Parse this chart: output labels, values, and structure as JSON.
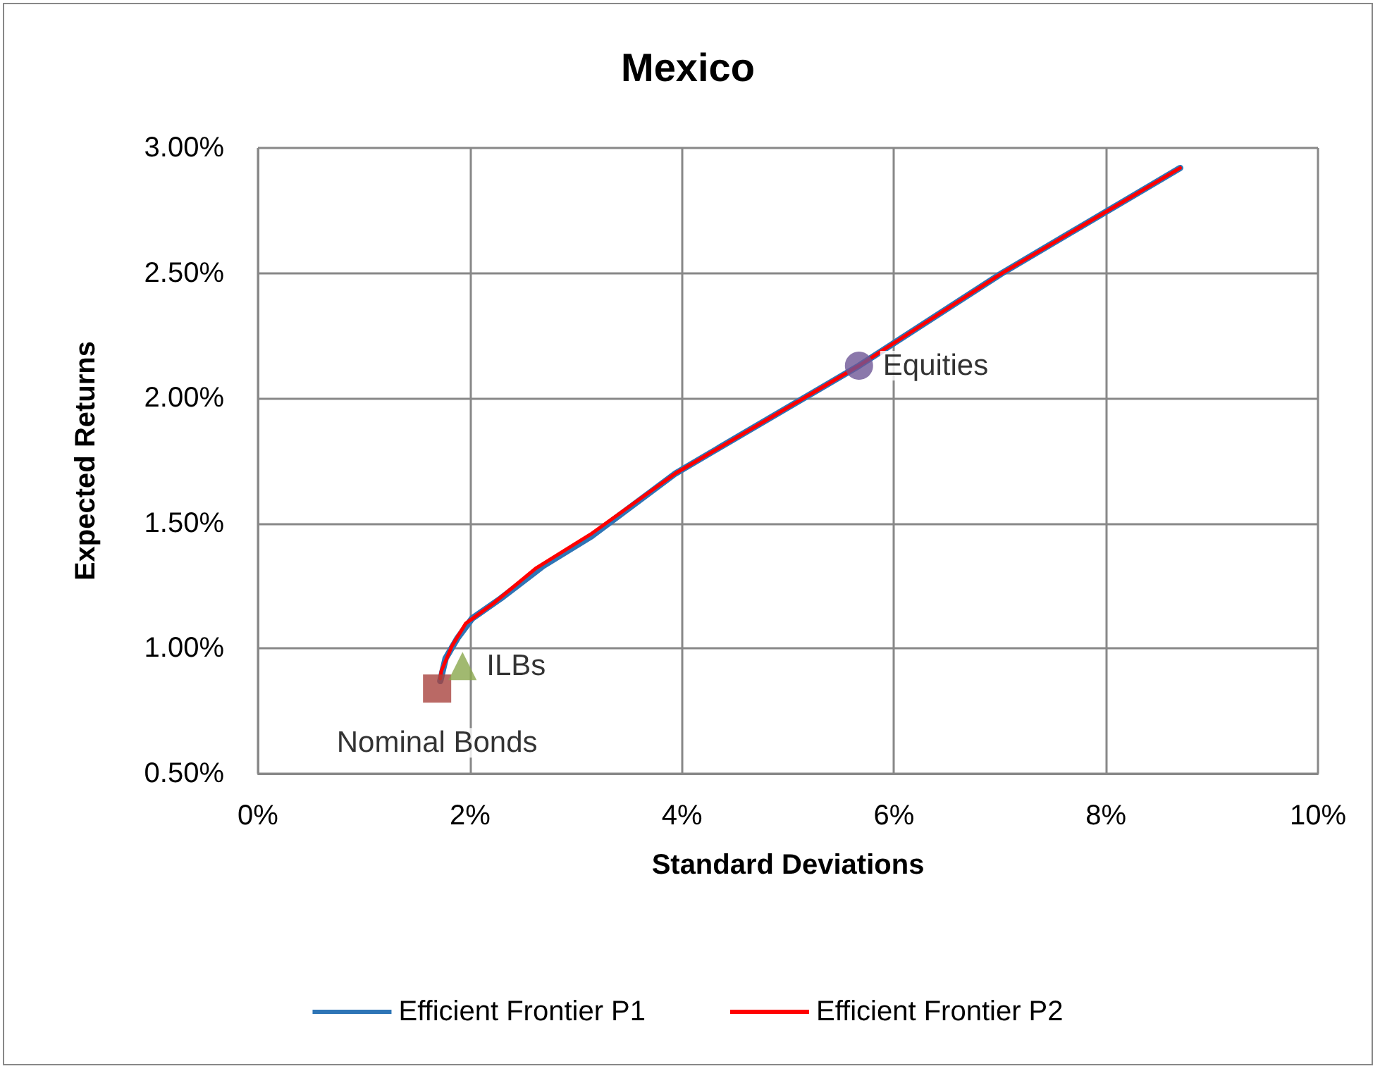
{
  "chart_data": {
    "type": "line",
    "title": "Mexico",
    "xlabel": "Standard Deviations",
    "ylabel": "Expected Returns",
    "xlim": [
      0,
      10
    ],
    "xticks": [
      {
        "value": 0,
        "label": "0%"
      },
      {
        "value": 2,
        "label": "2%"
      },
      {
        "value": 4,
        "label": "4%"
      },
      {
        "value": 6,
        "label": "6%"
      },
      {
        "value": 8,
        "label": "8%"
      },
      {
        "value": 10,
        "label": "10%"
      }
    ],
    "ylim": [
      0.5,
      3.0
    ],
    "yticks": [
      {
        "value": 0.5,
        "label": "0.50%"
      },
      {
        "value": 1.0,
        "label": "1.00%"
      },
      {
        "value": 1.5,
        "label": "1.50%"
      },
      {
        "value": 2.0,
        "label": "2.00%"
      },
      {
        "value": 2.5,
        "label": "2.50%"
      },
      {
        "value": 3.0,
        "label": "3.00%"
      }
    ],
    "grid": true,
    "legend": "bottom",
    "line_style": "solid",
    "series": [
      {
        "name": "Efficient Frontier P1",
        "marker": "none",
        "color": "#2e75b6",
        "x": [
          1.72,
          1.77,
          1.88,
          2.02,
          2.29,
          2.69,
          3.15,
          3.94,
          5.67,
          7.02,
          8.7
        ],
        "values": [
          0.87,
          0.96,
          1.04,
          1.12,
          1.2,
          1.33,
          1.45,
          1.7,
          2.13,
          2.5,
          2.92
        ]
      },
      {
        "name": "Efficient Frontier P2",
        "marker": "none",
        "color": "#ff0000",
        "x": [
          1.72,
          1.73,
          1.83,
          1.96,
          2.22,
          2.62,
          3.15,
          3.94,
          5.67,
          7.02,
          8.7
        ],
        "values": [
          0.88,
          0.91,
          1.01,
          1.1,
          1.18,
          1.32,
          1.46,
          1.7,
          2.13,
          2.5,
          2.92
        ]
      },
      {
        "name": "Nominal Bonds",
        "type": "scatter",
        "marker": "square",
        "color": "#a9443f",
        "x": [
          1.69
        ],
        "values": [
          0.84
        ]
      },
      {
        "name": "ILBs",
        "type": "scatter",
        "marker": "triangle",
        "color": "#8aa84c",
        "x": [
          1.93
        ],
        "values": [
          0.93
        ]
      },
      {
        "name": "Equities",
        "type": "scatter",
        "marker": "circle",
        "color": "#6e5696",
        "x": [
          5.67
        ],
        "values": [
          2.13
        ]
      }
    ]
  }
}
